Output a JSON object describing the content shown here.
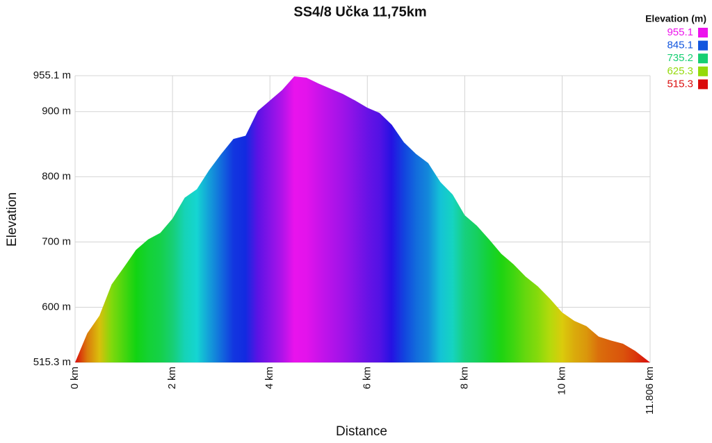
{
  "chart_data": {
    "type": "area",
    "title": "SS4/8 Učka 11,75km",
    "x_label": "Distance",
    "y_label": "Elevation",
    "x": [
      0,
      0.25,
      0.5,
      0.75,
      1.0,
      1.25,
      1.5,
      1.75,
      2.0,
      2.25,
      2.5,
      2.75,
      3.0,
      3.25,
      3.5,
      3.75,
      4.0,
      4.25,
      4.5,
      4.75,
      5.0,
      5.25,
      5.5,
      5.75,
      6.0,
      6.25,
      6.5,
      6.75,
      7.0,
      7.25,
      7.5,
      7.75,
      8.0,
      8.25,
      8.5,
      8.75,
      9.0,
      9.25,
      9.5,
      9.75,
      10.0,
      10.25,
      10.5,
      10.75,
      11.0,
      11.25,
      11.5,
      11.806
    ],
    "values": [
      515.3,
      560,
      587,
      635,
      661,
      688,
      704,
      714,
      736,
      768,
      781,
      810,
      835,
      858,
      863,
      901,
      917,
      933,
      954,
      952,
      943,
      935,
      927,
      917,
      906,
      898,
      880,
      853,
      835,
      821,
      792,
      773,
      741,
      725,
      704,
      682,
      666,
      647,
      632,
      613,
      592,
      579,
      571,
      555,
      549,
      544,
      533,
      515.3
    ],
    "xlim": [
      0,
      11.806
    ],
    "xticks": [
      {
        "value": 0,
        "label": "0 km"
      },
      {
        "value": 2,
        "label": "2 km"
      },
      {
        "value": 4,
        "label": "4 km"
      },
      {
        "value": 6,
        "label": "6 km"
      },
      {
        "value": 8,
        "label": "8 km"
      },
      {
        "value": 10,
        "label": "10 km"
      },
      {
        "value": 11.806,
        "label": "11.806 km"
      }
    ],
    "ylim": [
      515.3,
      955.1
    ],
    "yticks": [
      {
        "value": 515.3,
        "label": "515.3 m"
      },
      {
        "value": 600,
        "label": "600 m"
      },
      {
        "value": 700,
        "label": "700 m"
      },
      {
        "value": 800,
        "label": "800 m"
      },
      {
        "value": 900,
        "label": "900 m"
      },
      {
        "value": 955.1,
        "label": "955.1 m"
      }
    ],
    "grid": true,
    "legend": {
      "title": "Elevation (m)",
      "position": "top-right",
      "entries": [
        {
          "value": 955.1,
          "color": "hsl(300, 85%, 50%)"
        },
        {
          "value": 845.1,
          "color": "hsl(220, 85%, 47%)"
        },
        {
          "value": 735.2,
          "color": "hsl(150, 80%, 45%)"
        },
        {
          "value": 625.3,
          "color": "hsl(80, 90%, 45%)"
        },
        {
          "value": 515.3,
          "color": "hsl(0, 90%, 45%)"
        }
      ]
    }
  }
}
